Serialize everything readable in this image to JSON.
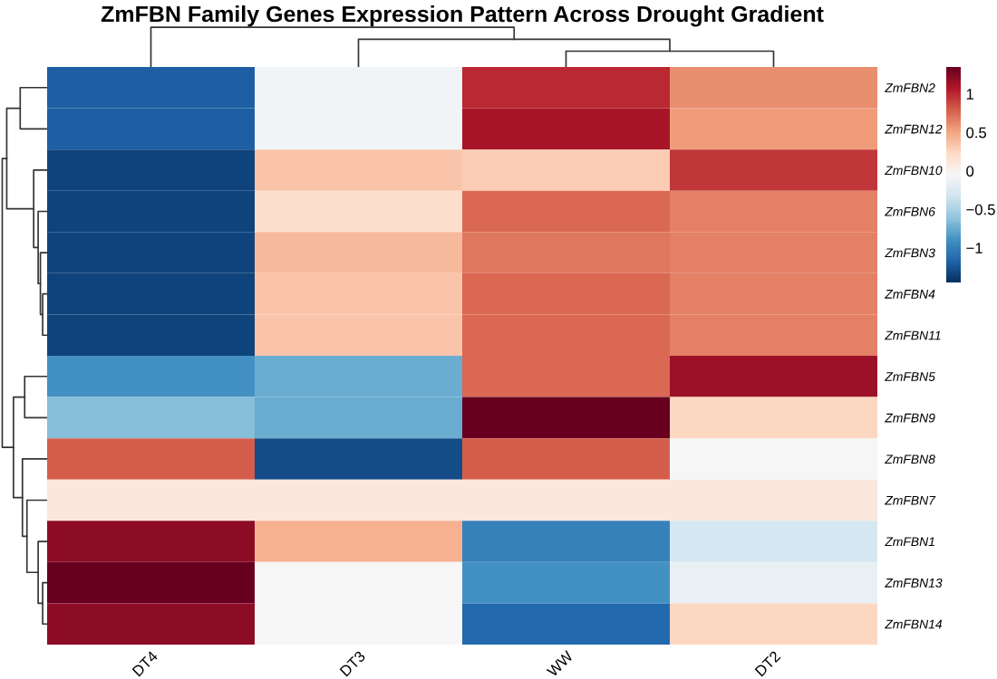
{
  "chart_data": {
    "type": "heatmap",
    "title": "ZmFBN Family Genes Expression Pattern Across Drought Gradient",
    "categories": [
      "DT4",
      "DT3",
      "WW",
      "DT2"
    ],
    "y_categories": [
      "ZmFBN2",
      "ZmFBN12",
      "ZmFBN10",
      "ZmFBN6",
      "ZmFBN3",
      "ZmFBN4",
      "ZmFBN11",
      "ZmFBN5",
      "ZmFBN9",
      "ZmFBN8",
      "ZmFBN7",
      "ZmFBN1",
      "ZmFBN13",
      "ZmFBN14"
    ],
    "cells": [
      [
        -1.2,
        -0.1,
        1.0,
        0.6
      ],
      [
        -1.2,
        -0.1,
        1.1,
        0.55
      ],
      [
        -1.35,
        0.35,
        0.3,
        0.95
      ],
      [
        -1.35,
        0.2,
        0.75,
        0.65
      ],
      [
        -1.35,
        0.4,
        0.7,
        0.65
      ],
      [
        -1.35,
        0.35,
        0.75,
        0.65
      ],
      [
        -1.35,
        0.35,
        0.75,
        0.65
      ],
      [
        -0.9,
        -0.75,
        0.75,
        1.15
      ],
      [
        -0.65,
        -0.75,
        1.35,
        0.25
      ],
      [
        0.8,
        -1.3,
        0.8,
        -0.05
      ],
      [
        0.1,
        0.1,
        0.1,
        0.1
      ],
      [
        1.2,
        0.45,
        -1.0,
        -0.3
      ],
      [
        1.35,
        -0.05,
        -0.9,
        -0.15
      ],
      [
        1.2,
        -0.05,
        -1.15,
        0.25
      ]
    ],
    "clim": [
      -1.45,
      1.35
    ],
    "cticks": [
      {
        "value": -1,
        "label": "−1"
      },
      {
        "value": -0.5,
        "label": "−0.5"
      },
      0,
      0.5,
      1
    ]
  }
}
